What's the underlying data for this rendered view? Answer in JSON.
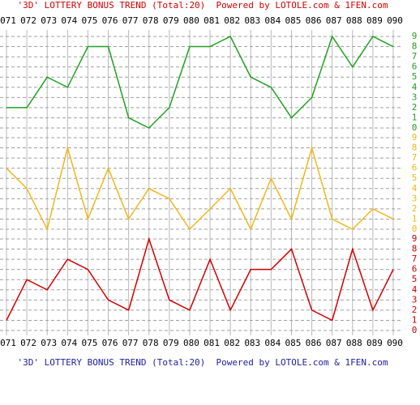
{
  "title": "'3D' LOTTERY BONUS TREND (Total:20)  Powered by LOTOLE.com & 1FEN.com",
  "footer": "'3D' LOTTERY BONUS TREND (Total:20)  Powered by LOTOLE.com & 1FEN.com",
  "categories": [
    "071",
    "072",
    "073",
    "074",
    "075",
    "076",
    "077",
    "078",
    "079",
    "080",
    "081",
    "082",
    "083",
    "084",
    "085",
    "086",
    "087",
    "088",
    "089",
    "090"
  ],
  "chart_data": [
    {
      "type": "line",
      "series": [
        {
          "color": "#20a020",
          "values": [
            2,
            2,
            5,
            4,
            8,
            8,
            1,
            0,
            2,
            8,
            8,
            9,
            5,
            4,
            1,
            3,
            9,
            6,
            9,
            8
          ]
        }
      ],
      "ylim": [
        0,
        9
      ],
      "yticks": [
        0,
        1,
        2,
        3,
        4,
        5,
        6,
        7,
        8,
        9
      ],
      "grid": true
    },
    {
      "type": "line",
      "series": [
        {
          "color": "#f0b818",
          "values": [
            6,
            4,
            0,
            8,
            1,
            6,
            1,
            4,
            3,
            0,
            2,
            4,
            0,
            5,
            1,
            8,
            1,
            0,
            2,
            1
          ]
        }
      ],
      "ylim": [
        0,
        9
      ],
      "yticks": [
        0,
        1,
        2,
        3,
        4,
        5,
        6,
        7,
        8,
        9
      ],
      "grid": true
    },
    {
      "type": "line",
      "series": [
        {
          "color": "#d00000",
          "values": [
            1,
            5,
            4,
            7,
            6,
            3,
            2,
            9,
            3,
            2,
            7,
            2,
            6,
            6,
            8,
            2,
            1,
            8,
            2,
            6
          ]
        }
      ],
      "ylim": [
        0,
        9
      ],
      "yticks": [
        0,
        1,
        2,
        3,
        4,
        5,
        6,
        7,
        8,
        9
      ],
      "grid": true
    }
  ]
}
